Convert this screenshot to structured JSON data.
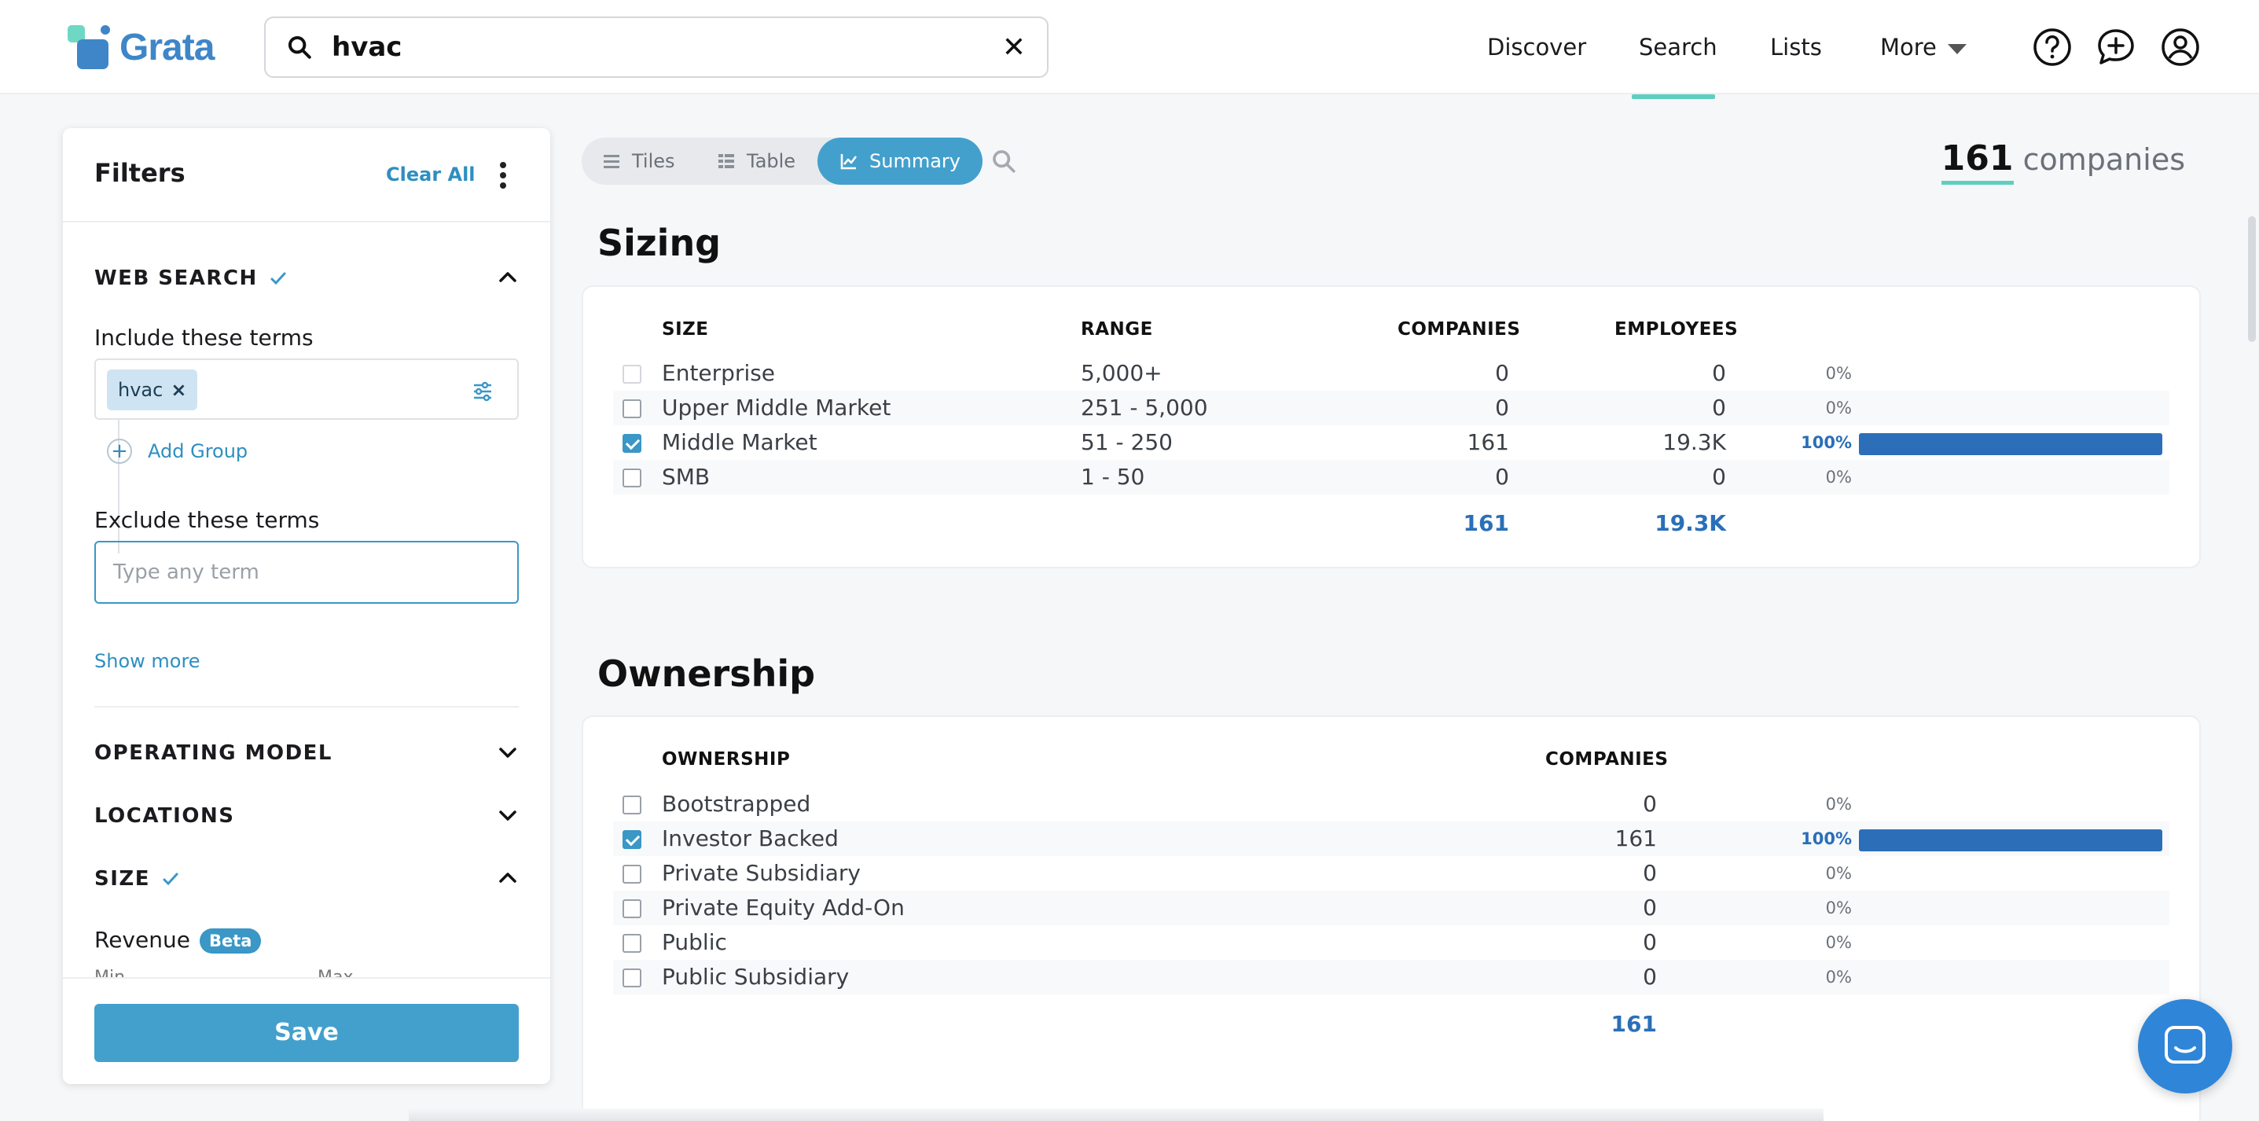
{
  "header": {
    "logo_text": "Grata",
    "search_value": "hvac",
    "nav": [
      {
        "label": "Discover"
      },
      {
        "label": "Search"
      },
      {
        "label": "Lists"
      },
      {
        "label": "More"
      }
    ],
    "active_nav": "Search"
  },
  "filters": {
    "title": "Filters",
    "clear_all": "Clear All",
    "web_search": {
      "title": "WEB SEARCH",
      "include_label": "Include these terms",
      "include_terms": [
        "hvac"
      ],
      "add_group": "Add Group",
      "exclude_label": "Exclude these terms",
      "exclude_placeholder": "Type any term",
      "show_more": "Show more"
    },
    "operating_model": "OPERATING MODEL",
    "locations": "LOCATIONS",
    "size": {
      "title": "SIZE",
      "revenue_label": "Revenue",
      "beta_badge": "Beta",
      "min_label": "Min",
      "max_label": "Max"
    },
    "save": "Save"
  },
  "view_toggle": {
    "tiles": "Tiles",
    "table": "Table",
    "summary": "Summary",
    "active": "Summary"
  },
  "result_count": {
    "number": "161",
    "unit": "companies"
  },
  "sizing": {
    "title": "Sizing",
    "headers": {
      "size": "SIZE",
      "range": "RANGE",
      "companies": "COMPANIES",
      "employees": "EMPLOYEES"
    },
    "rows": [
      {
        "size": "Enterprise",
        "range": "5,000+",
        "companies": "0",
        "employees": "0",
        "pct": "0%",
        "fraction": 0,
        "checked": false,
        "disabled": true
      },
      {
        "size": "Upper Middle Market",
        "range": "251 - 5,000",
        "companies": "0",
        "employees": "0",
        "pct": "0%",
        "fraction": 0,
        "checked": false,
        "disabled": false
      },
      {
        "size": "Middle Market",
        "range": "51 - 250",
        "companies": "161",
        "employees": "19.3K",
        "pct": "100%",
        "fraction": 1,
        "checked": true,
        "disabled": false
      },
      {
        "size": "SMB",
        "range": "1 - 50",
        "companies": "0",
        "employees": "0",
        "pct": "0%",
        "fraction": 0,
        "checked": false,
        "disabled": false
      }
    ],
    "total_companies": "161",
    "total_employees": "19.3K"
  },
  "ownership": {
    "title": "Ownership",
    "headers": {
      "ownership": "OWNERSHIP",
      "companies": "COMPANIES"
    },
    "rows": [
      {
        "type": "Bootstrapped",
        "companies": "0",
        "pct": "0%",
        "fraction": 0,
        "checked": false
      },
      {
        "type": "Investor Backed",
        "companies": "161",
        "pct": "100%",
        "fraction": 1,
        "checked": true
      },
      {
        "type": "Private Subsidiary",
        "companies": "0",
        "pct": "0%",
        "fraction": 0,
        "checked": false
      },
      {
        "type": "Private Equity Add-On",
        "companies": "0",
        "pct": "0%",
        "fraction": 0,
        "checked": false
      },
      {
        "type": "Public",
        "companies": "0",
        "pct": "0%",
        "fraction": 0,
        "checked": false
      },
      {
        "type": "Public Subsidiary",
        "companies": "0",
        "pct": "0%",
        "fraction": 0,
        "checked": false
      }
    ],
    "total_companies": "161"
  },
  "colors": {
    "accent": "#43a0cd",
    "bar": "#2c6fb8",
    "active_underline": "#5ecfbf",
    "link": "#2e8fc0"
  },
  "icons": [
    "search-icon",
    "clear-icon",
    "help-icon",
    "chat-plus-icon",
    "user-icon",
    "check-icon",
    "chevron-up-icon",
    "chevron-down-icon",
    "tune-icon",
    "plus-icon",
    "list-icon",
    "table-icon",
    "chart-icon",
    "messenger-icon"
  ]
}
